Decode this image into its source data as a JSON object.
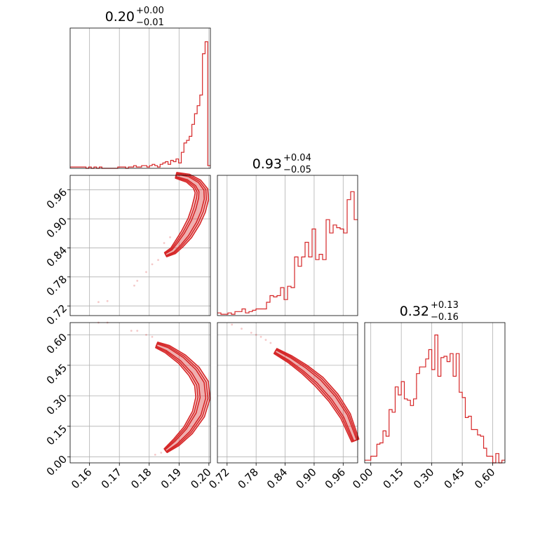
{
  "chart_data": {
    "type": "corner",
    "color": "#d62728",
    "grid": true,
    "parameters": [
      {
        "index": 0,
        "title": {
          "median": "0.20",
          "plus": "+0.00",
          "minus": "−0.01"
        },
        "range": [
          0.1535,
          0.2005
        ],
        "ticks": [
          0.16,
          0.17,
          0.18,
          0.19,
          0.2
        ],
        "tick_labels": [
          "0.16",
          "0.17",
          "0.18",
          "0.19",
          "0.20"
        ],
        "histogram": [
          0.01,
          0.01,
          0.01,
          0.01,
          0.01,
          0.01,
          0.0,
          0.01,
          0.0,
          0.01,
          0.0,
          0.01,
          0.0,
          0.0,
          0.0,
          0.0,
          0.0,
          0.0,
          0.01,
          0.01,
          0.01,
          0.0,
          0.01,
          0.01,
          0.02,
          0.01,
          0.01,
          0.02,
          0.02,
          0.01,
          0.02,
          0.03,
          0.02,
          0.01,
          0.03,
          0.04,
          0.05,
          0.03,
          0.06,
          0.05,
          0.07,
          0.04,
          0.12,
          0.19,
          0.21,
          0.24,
          0.33,
          0.41,
          0.47,
          0.55,
          0.86,
          0.95,
          0.02
        ]
      },
      {
        "index": 1,
        "title": {
          "median": "0.93",
          "plus": "+0.04",
          "minus": "−0.05"
        },
        "range": [
          0.7,
          0.99
        ],
        "ticks": [
          0.72,
          0.78,
          0.84,
          0.9,
          0.96
        ],
        "tick_labels": [
          "0.72",
          "0.78",
          "0.84",
          "0.90",
          "0.96"
        ],
        "histogram": [
          0.02,
          0.01,
          0.01,
          0.02,
          0.01,
          0.03,
          0.03,
          0.05,
          0.02,
          0.03,
          0.04,
          0.05,
          0.05,
          0.05,
          0.1,
          0.15,
          0.14,
          0.15,
          0.21,
          0.12,
          0.22,
          0.21,
          0.44,
          0.37,
          0.44,
          0.55,
          0.44,
          0.65,
          0.42,
          0.46,
          0.42,
          0.72,
          0.62,
          0.68,
          0.66,
          0.65,
          0.62,
          0.87,
          0.93,
          0.72
        ]
      },
      {
        "index": 2,
        "title": {
          "median": "0.32",
          "plus": "+0.13",
          "minus": "−0.16"
        },
        "range": [
          -0.03,
          0.66
        ],
        "ticks": [
          0.0,
          0.15,
          0.3,
          0.45,
          0.6
        ],
        "tick_labels": [
          "0.00",
          "0.15",
          "0.30",
          "0.45",
          "0.60"
        ],
        "histogram": [
          0.02,
          0.02,
          0.05,
          0.05,
          0.14,
          0.15,
          0.24,
          0.2,
          0.4,
          0.38,
          0.57,
          0.51,
          0.61,
          0.48,
          0.47,
          0.43,
          0.48,
          0.67,
          0.72,
          0.72,
          0.78,
          0.85,
          0.7,
          0.96,
          0.65,
          0.79,
          0.8,
          0.76,
          0.82,
          0.65,
          0.82,
          0.53,
          0.49,
          0.34,
          0.35,
          0.25,
          0.25,
          0.21,
          0.2,
          0.11,
          0.05,
          0.05,
          0.0,
          0.07,
          0.0,
          0.02
        ]
      }
    ],
    "pairs": [
      {
        "x": 0,
        "y": 1,
        "ridge": [
          [
            0.1855,
            0.826
          ],
          [
            0.188,
            0.834
          ],
          [
            0.19,
            0.848
          ],
          [
            0.1925,
            0.868
          ],
          [
            0.195,
            0.895
          ],
          [
            0.1965,
            0.918
          ],
          [
            0.1975,
            0.942
          ],
          [
            0.1975,
            0.958
          ],
          [
            0.196,
            0.972
          ],
          [
            0.193,
            0.984
          ],
          [
            0.189,
            0.99
          ]
        ],
        "width": [
          0.0008,
          0.0012,
          0.0016,
          0.002,
          0.0022,
          0.0024,
          0.0024,
          0.0022,
          0.0018,
          0.0014,
          0.001
        ],
        "scatter": [
          [
            0.163,
            0.728
          ],
          [
            0.166,
            0.73
          ],
          [
            0.175,
            0.762
          ],
          [
            0.176,
            0.772
          ],
          [
            0.179,
            0.79
          ],
          [
            0.181,
            0.806
          ],
          [
            0.183,
            0.815
          ],
          [
            0.185,
            0.85
          ],
          [
            0.187,
            0.862
          ]
        ]
      },
      {
        "x": 0,
        "y": 2,
        "ridge": [
          [
            0.1855,
            0.03
          ],
          [
            0.189,
            0.07
          ],
          [
            0.193,
            0.13
          ],
          [
            0.1965,
            0.21
          ],
          [
            0.198,
            0.29
          ],
          [
            0.1975,
            0.36
          ],
          [
            0.195,
            0.42
          ],
          [
            0.191,
            0.48
          ],
          [
            0.186,
            0.53
          ],
          [
            0.1825,
            0.55
          ]
        ],
        "width": [
          0.0008,
          0.0014,
          0.0018,
          0.0022,
          0.0024,
          0.0024,
          0.0022,
          0.0018,
          0.0014,
          0.001
        ],
        "scatter": [
          [
            0.163,
            0.66
          ],
          [
            0.166,
            0.66
          ],
          [
            0.174,
            0.62
          ],
          [
            0.176,
            0.62
          ],
          [
            0.179,
            0.6
          ],
          [
            0.181,
            0.59
          ],
          [
            0.182,
            0.01
          ],
          [
            0.184,
            0.02
          ]
        ]
      },
      {
        "x": 1,
        "y": 2,
        "ridge": [
          [
            0.82,
            0.52
          ],
          [
            0.85,
            0.48
          ],
          [
            0.88,
            0.43
          ],
          [
            0.91,
            0.37
          ],
          [
            0.94,
            0.29
          ],
          [
            0.965,
            0.2
          ],
          [
            0.985,
            0.08
          ]
        ],
        "width": [
          0.006,
          0.008,
          0.01,
          0.012,
          0.012,
          0.011,
          0.008
        ],
        "scatter": [
          [
            0.73,
            0.65
          ],
          [
            0.75,
            0.63
          ],
          [
            0.77,
            0.61
          ],
          [
            0.78,
            0.6
          ],
          [
            0.79,
            0.59
          ],
          [
            0.8,
            0.575
          ],
          [
            0.81,
            0.56
          ]
        ]
      }
    ]
  }
}
